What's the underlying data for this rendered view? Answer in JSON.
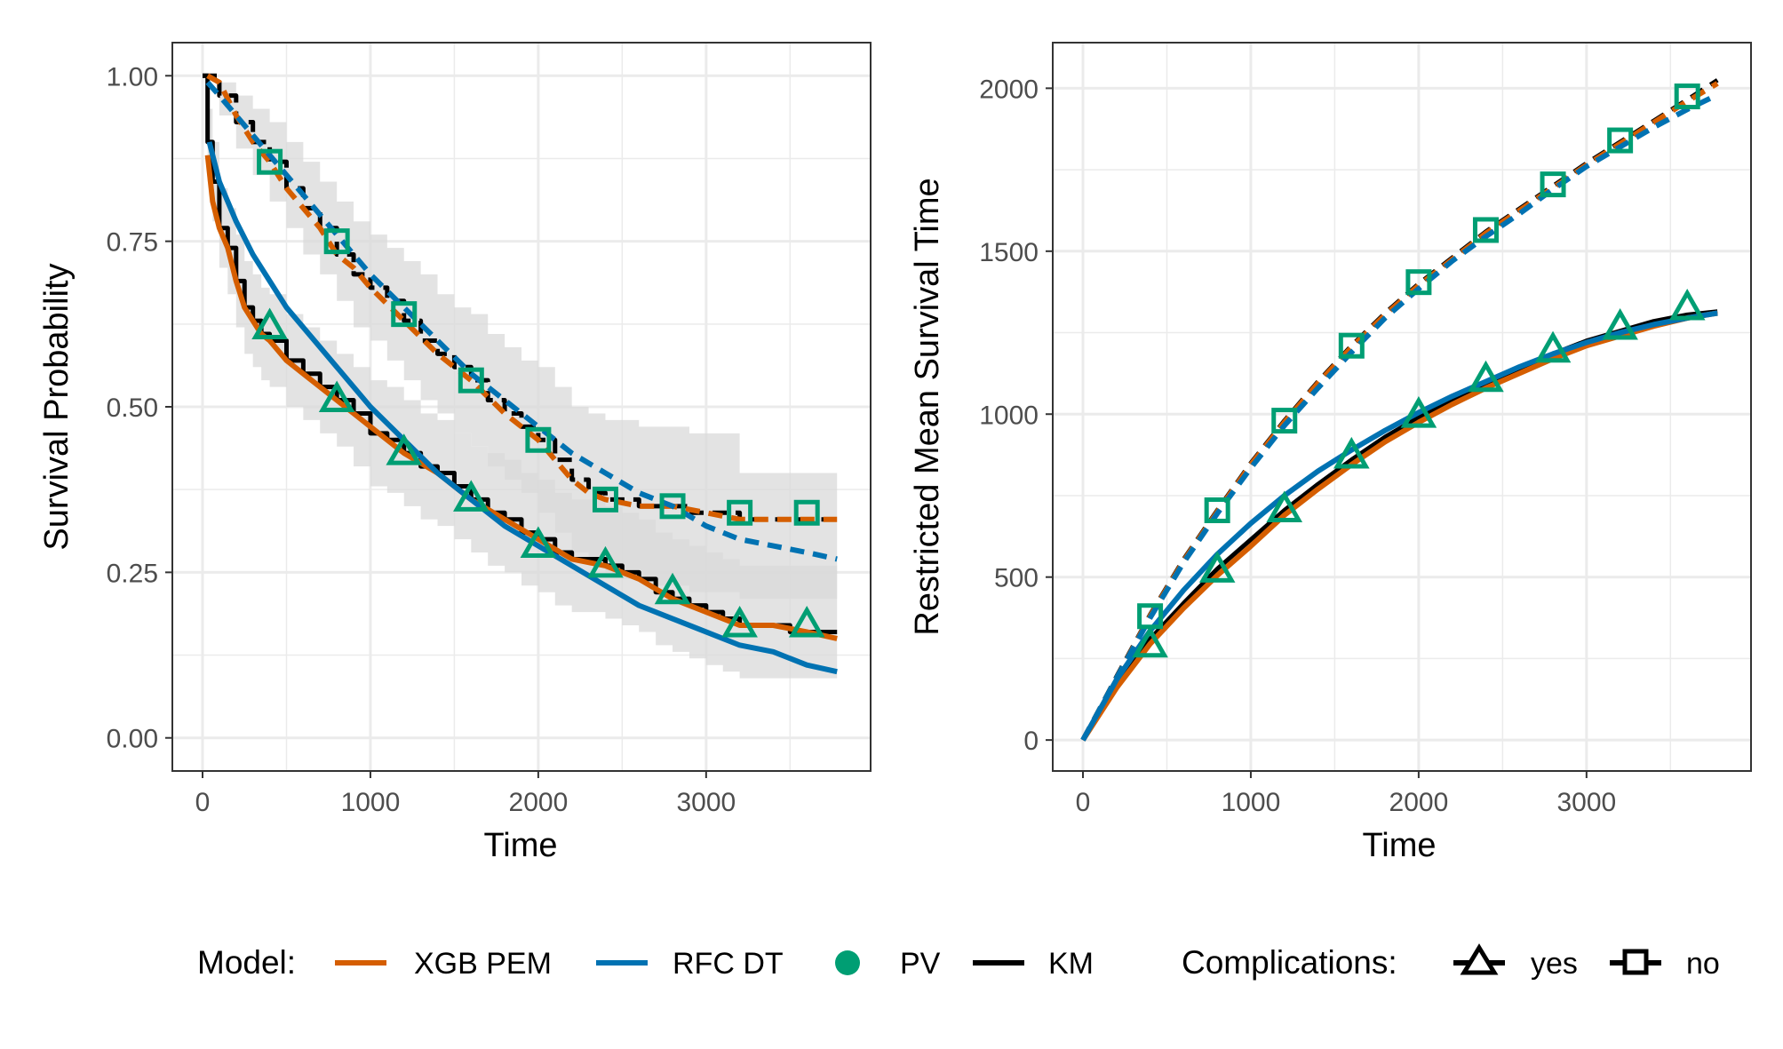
{
  "colors": {
    "xgb": "#D55E00",
    "rfc": "#0072B2",
    "pv": "#009E73",
    "km": "#000000",
    "ci": "#d9d9d9",
    "grid": "#ebebeb",
    "panel_border": "#333333"
  },
  "legend": {
    "model_title": "Model:",
    "model_items": [
      {
        "label": "XGB PEM",
        "color": "#D55E00",
        "kind": "line"
      },
      {
        "label": "RFC DT",
        "color": "#0072B2",
        "kind": "line"
      },
      {
        "label": "PV",
        "color": "#009E73",
        "kind": "point"
      },
      {
        "label": "KM",
        "color": "#000000",
        "kind": "line"
      }
    ],
    "group_title": "Complications:",
    "group_items": [
      {
        "label": "yes",
        "shape": "triangle"
      },
      {
        "label": "no",
        "shape": "square"
      }
    ]
  },
  "chart_data": [
    {
      "type": "line",
      "xlabel": "Time",
      "ylabel": "Survival Probability",
      "xlim": [
        -180,
        3980
      ],
      "ylim": [
        -0.05,
        1.05
      ],
      "x_ticks": [
        0,
        1000,
        2000,
        3000
      ],
      "x_tick_labels": [
        "0",
        "1000",
        "2000",
        "3000"
      ],
      "y_ticks": [
        0,
        0.25,
        0.5,
        0.75,
        1
      ],
      "y_tick_labels": [
        "0.00",
        "0.25",
        "0.50",
        "0.75",
        "1.00"
      ],
      "grid": true,
      "series": [
        {
          "name": "KM",
          "group": "yes",
          "step": true,
          "x": [
            0,
            30,
            60,
            100,
            150,
            200,
            250,
            300,
            350,
            400,
            500,
            600,
            700,
            800,
            900,
            1000,
            1100,
            1200,
            1300,
            1400,
            1500,
            1600,
            1700,
            1800,
            1900,
            2000,
            2100,
            2200,
            2300,
            2400,
            2500,
            2600,
            2700,
            2800,
            2900,
            3000,
            3100,
            3200,
            3300,
            3400,
            3500,
            3600,
            3700,
            3780
          ],
          "y": [
            1.0,
            0.9,
            0.84,
            0.77,
            0.74,
            0.69,
            0.65,
            0.63,
            0.61,
            0.6,
            0.57,
            0.55,
            0.53,
            0.51,
            0.49,
            0.46,
            0.45,
            0.43,
            0.41,
            0.4,
            0.38,
            0.36,
            0.34,
            0.33,
            0.31,
            0.3,
            0.28,
            0.27,
            0.27,
            0.26,
            0.25,
            0.24,
            0.22,
            0.21,
            0.2,
            0.19,
            0.18,
            0.17,
            0.17,
            0.17,
            0.16,
            0.16,
            0.16,
            0.16
          ],
          "ci_lower": [
            1.0,
            0.84,
            0.78,
            0.71,
            0.67,
            0.62,
            0.58,
            0.56,
            0.54,
            0.53,
            0.5,
            0.48,
            0.46,
            0.44,
            0.41,
            0.38,
            0.37,
            0.35,
            0.33,
            0.32,
            0.3,
            0.28,
            0.26,
            0.25,
            0.23,
            0.22,
            0.2,
            0.19,
            0.19,
            0.18,
            0.17,
            0.16,
            0.14,
            0.13,
            0.12,
            0.11,
            0.1,
            0.09,
            0.09,
            0.09,
            0.09,
            0.09,
            0.09,
            0.09
          ],
          "ci_upper": [
            1.0,
            0.95,
            0.9,
            0.83,
            0.8,
            0.76,
            0.72,
            0.7,
            0.68,
            0.67,
            0.64,
            0.62,
            0.6,
            0.58,
            0.56,
            0.54,
            0.53,
            0.51,
            0.49,
            0.48,
            0.46,
            0.44,
            0.43,
            0.42,
            0.4,
            0.39,
            0.37,
            0.36,
            0.36,
            0.35,
            0.34,
            0.33,
            0.31,
            0.3,
            0.29,
            0.28,
            0.27,
            0.26,
            0.26,
            0.26,
            0.26,
            0.26,
            0.26,
            0.26
          ]
        },
        {
          "name": "KM",
          "group": "no",
          "step": true,
          "x": [
            0,
            100,
            200,
            300,
            400,
            500,
            600,
            700,
            800,
            900,
            1000,
            1100,
            1200,
            1300,
            1400,
            1500,
            1600,
            1700,
            1800,
            1900,
            2000,
            2100,
            2200,
            2300,
            2400,
            2500,
            2600,
            2700,
            2800,
            2900,
            3000,
            3200,
            3400,
            3600,
            3780
          ],
          "y": [
            1.0,
            0.97,
            0.93,
            0.9,
            0.87,
            0.83,
            0.8,
            0.77,
            0.73,
            0.7,
            0.68,
            0.66,
            0.63,
            0.6,
            0.58,
            0.56,
            0.54,
            0.51,
            0.49,
            0.47,
            0.45,
            0.42,
            0.39,
            0.37,
            0.36,
            0.36,
            0.35,
            0.35,
            0.35,
            0.34,
            0.34,
            0.33,
            0.33,
            0.33,
            0.33
          ],
          "ci_lower": [
            1.0,
            0.94,
            0.89,
            0.85,
            0.81,
            0.77,
            0.73,
            0.7,
            0.66,
            0.62,
            0.6,
            0.57,
            0.54,
            0.51,
            0.49,
            0.46,
            0.44,
            0.41,
            0.39,
            0.37,
            0.34,
            0.31,
            0.28,
            0.26,
            0.25,
            0.24,
            0.24,
            0.23,
            0.23,
            0.22,
            0.22,
            0.21,
            0.21,
            0.21,
            0.21
          ],
          "ci_upper": [
            1.0,
            0.99,
            0.97,
            0.95,
            0.93,
            0.9,
            0.87,
            0.84,
            0.81,
            0.78,
            0.76,
            0.74,
            0.72,
            0.7,
            0.67,
            0.65,
            0.64,
            0.61,
            0.59,
            0.57,
            0.56,
            0.53,
            0.5,
            0.49,
            0.48,
            0.48,
            0.47,
            0.47,
            0.47,
            0.46,
            0.46,
            0.4,
            0.4,
            0.4,
            0.4
          ]
        },
        {
          "name": "XGB PEM",
          "group": "yes",
          "x": [
            30,
            60,
            100,
            150,
            200,
            250,
            300,
            350,
            400,
            500,
            600,
            700,
            800,
            900,
            1000,
            1200,
            1400,
            1600,
            1800,
            2000,
            2200,
            2400,
            2600,
            2800,
            3000,
            3200,
            3400,
            3600,
            3780
          ],
          "y": [
            0.88,
            0.81,
            0.77,
            0.74,
            0.69,
            0.65,
            0.63,
            0.61,
            0.6,
            0.57,
            0.55,
            0.53,
            0.51,
            0.49,
            0.47,
            0.43,
            0.4,
            0.36,
            0.33,
            0.3,
            0.27,
            0.26,
            0.24,
            0.21,
            0.19,
            0.17,
            0.17,
            0.16,
            0.15
          ]
        },
        {
          "name": "XGB PEM",
          "group": "no",
          "x": [
            30,
            100,
            200,
            300,
            400,
            500,
            600,
            700,
            800,
            900,
            1000,
            1200,
            1400,
            1600,
            1800,
            2000,
            2100,
            2200,
            2300,
            2400,
            2600,
            2800,
            3000,
            3200,
            3400,
            3600,
            3780
          ],
          "y": [
            1.0,
            0.99,
            0.94,
            0.9,
            0.87,
            0.83,
            0.8,
            0.77,
            0.73,
            0.71,
            0.68,
            0.63,
            0.58,
            0.54,
            0.49,
            0.45,
            0.42,
            0.39,
            0.37,
            0.36,
            0.35,
            0.35,
            0.34,
            0.33,
            0.33,
            0.33,
            0.33
          ]
        },
        {
          "name": "RFC DT",
          "group": "yes",
          "x": [
            40,
            100,
            200,
            300,
            400,
            500,
            600,
            800,
            1000,
            1200,
            1400,
            1600,
            1800,
            2000,
            2200,
            2400,
            2600,
            2800,
            3000,
            3200,
            3400,
            3600,
            3780
          ],
          "y": [
            0.9,
            0.84,
            0.78,
            0.73,
            0.69,
            0.65,
            0.62,
            0.56,
            0.5,
            0.45,
            0.4,
            0.36,
            0.32,
            0.29,
            0.26,
            0.23,
            0.2,
            0.18,
            0.16,
            0.14,
            0.13,
            0.11,
            0.1
          ]
        },
        {
          "name": "RFC DT",
          "group": "no",
          "x": [
            30,
            100,
            200,
            400,
            600,
            800,
            1000,
            1200,
            1400,
            1600,
            1800,
            2000,
            2200,
            2400,
            2600,
            2800,
            3000,
            3200,
            3400,
            3600,
            3780
          ],
          "y": [
            0.99,
            0.97,
            0.94,
            0.88,
            0.82,
            0.76,
            0.7,
            0.65,
            0.6,
            0.55,
            0.51,
            0.47,
            0.43,
            0.4,
            0.37,
            0.35,
            0.32,
            0.3,
            0.29,
            0.28,
            0.27
          ]
        },
        {
          "name": "PV",
          "group": "yes",
          "x": [
            400,
            800,
            1200,
            1600,
            2000,
            2400,
            2800,
            3200,
            3600
          ],
          "y": [
            0.62,
            0.51,
            0.43,
            0.36,
            0.29,
            0.26,
            0.22,
            0.17,
            0.17
          ]
        },
        {
          "name": "PV",
          "group": "no",
          "x": [
            400,
            800,
            1200,
            1600,
            2000,
            2400,
            2800,
            3200,
            3600
          ],
          "y": [
            0.87,
            0.75,
            0.64,
            0.54,
            0.45,
            0.36,
            0.35,
            0.34,
            0.34
          ]
        }
      ]
    },
    {
      "type": "line",
      "xlabel": "Time",
      "ylabel": "Restricted Mean Survival Time",
      "xlim": [
        -180,
        3980
      ],
      "ylim": [
        -95,
        2140
      ],
      "x_ticks": [
        0,
        1000,
        2000,
        3000
      ],
      "x_tick_labels": [
        "0",
        "1000",
        "2000",
        "3000"
      ],
      "y_ticks": [
        0,
        500,
        1000,
        1500,
        2000
      ],
      "y_tick_labels": [
        "0",
        "500",
        "1000",
        "1500",
        "2000"
      ],
      "grid": true,
      "series": [
        {
          "name": "KM",
          "group": "yes",
          "x": [
            0,
            200,
            400,
            600,
            800,
            1000,
            1200,
            1400,
            1600,
            1800,
            2000,
            2200,
            2400,
            2600,
            2800,
            3000,
            3200,
            3400,
            3600,
            3780
          ],
          "y": [
            0,
            170,
            310,
            420,
            525,
            615,
            705,
            785,
            860,
            930,
            990,
            1045,
            1095,
            1140,
            1185,
            1225,
            1255,
            1285,
            1305,
            1315
          ]
        },
        {
          "name": "KM",
          "group": "no",
          "x": [
            0,
            200,
            400,
            600,
            800,
            1000,
            1200,
            1400,
            1600,
            1800,
            2000,
            2200,
            2400,
            2600,
            2800,
            3000,
            3200,
            3400,
            3600,
            3780
          ],
          "y": [
            0,
            195,
            385,
            555,
            705,
            850,
            980,
            1100,
            1210,
            1310,
            1400,
            1480,
            1560,
            1630,
            1700,
            1770,
            1835,
            1900,
            1965,
            2025
          ]
        },
        {
          "name": "XGB PEM",
          "group": "yes",
          "x": [
            0,
            200,
            400,
            600,
            800,
            1000,
            1200,
            1400,
            1600,
            1800,
            2000,
            2200,
            2400,
            2600,
            2800,
            3000,
            3200,
            3400,
            3600,
            3780
          ],
          "y": [
            0,
            160,
            295,
            405,
            505,
            595,
            690,
            770,
            845,
            915,
            975,
            1030,
            1080,
            1125,
            1170,
            1210,
            1240,
            1270,
            1295,
            1310
          ]
        },
        {
          "name": "XGB PEM",
          "group": "no",
          "x": [
            0,
            200,
            400,
            600,
            800,
            1000,
            1200,
            1400,
            1600,
            1800,
            2000,
            2200,
            2400,
            2600,
            2800,
            3000,
            3200,
            3400,
            3600,
            3780
          ],
          "y": [
            0,
            190,
            380,
            550,
            700,
            845,
            975,
            1095,
            1205,
            1305,
            1395,
            1475,
            1555,
            1625,
            1695,
            1765,
            1830,
            1895,
            1960,
            2015
          ]
        },
        {
          "name": "RFC DT",
          "group": "yes",
          "x": [
            0,
            200,
            400,
            600,
            800,
            1000,
            1200,
            1400,
            1600,
            1800,
            2000,
            2200,
            2400,
            2600,
            2800,
            3000,
            3200,
            3400,
            3600,
            3780
          ],
          "y": [
            0,
            185,
            335,
            460,
            570,
            665,
            750,
            825,
            890,
            950,
            1005,
            1055,
            1100,
            1145,
            1185,
            1220,
            1250,
            1275,
            1295,
            1310
          ]
        },
        {
          "name": "RFC DT",
          "group": "no",
          "x": [
            0,
            200,
            400,
            600,
            800,
            1000,
            1200,
            1400,
            1600,
            1800,
            2000,
            2200,
            2400,
            2600,
            2800,
            3000,
            3200,
            3400,
            3600,
            3780
          ],
          "y": [
            0,
            190,
            375,
            545,
            695,
            835,
            965,
            1080,
            1190,
            1295,
            1385,
            1470,
            1545,
            1615,
            1690,
            1760,
            1820,
            1880,
            1935,
            1980
          ]
        },
        {
          "name": "PV",
          "group": "yes",
          "x": [
            400,
            800,
            1200,
            1600,
            2000,
            2400,
            2800,
            3200,
            3600
          ],
          "y": [
            290,
            520,
            705,
            870,
            995,
            1105,
            1195,
            1265,
            1325
          ]
        },
        {
          "name": "PV",
          "group": "no",
          "x": [
            400,
            800,
            1200,
            1600,
            2000,
            2400,
            2800,
            3200,
            3600
          ],
          "y": [
            380,
            705,
            980,
            1210,
            1405,
            1565,
            1705,
            1840,
            1975
          ]
        }
      ]
    }
  ]
}
